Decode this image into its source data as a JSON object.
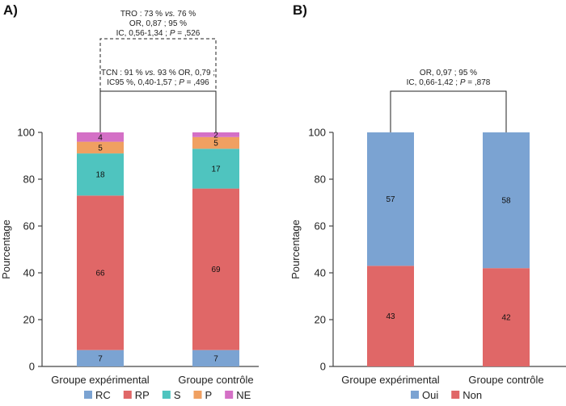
{
  "colors": {
    "RC": "#7BA3D2",
    "RP": "#E06767",
    "S": "#4FC4BF",
    "P": "#F0A061",
    "NE": "#D470C6",
    "Oui": "#7BA3D2",
    "Non": "#E06767"
  },
  "chart_data": [
    {
      "panel": "A)",
      "type": "bar",
      "stacked": true,
      "categories": [
        "Groupe expérimental",
        "Groupe contrôle"
      ],
      "ylabel": "Pourcentage",
      "ylim": [
        0,
        100
      ],
      "yticks": [
        0,
        20,
        40,
        60,
        80,
        100
      ],
      "series": [
        {
          "name": "RC",
          "values": [
            7,
            7
          ]
        },
        {
          "name": "RP",
          "values": [
            66,
            69
          ]
        },
        {
          "name": "S",
          "values": [
            18,
            17
          ]
        },
        {
          "name": "P",
          "values": [
            5,
            5
          ]
        },
        {
          "name": "NE",
          "values": [
            4,
            2
          ]
        }
      ],
      "legend": [
        "RC",
        "RP",
        "S",
        "P",
        "NE"
      ],
      "annotations": {
        "outer": [
          {
            "parts": [
              {
                "t": "TRO : 73 % "
              },
              {
                "t": "vs.",
                "i": true
              },
              {
                "t": " 76 %"
              }
            ]
          },
          {
            "parts": [
              {
                "t": "OR, 0,87 ; 95 %"
              }
            ]
          },
          {
            "parts": [
              {
                "t": "IC, 0,56-1,34 ; "
              },
              {
                "t": "P",
                "i": true
              },
              {
                "t": " = ,526"
              }
            ]
          }
        ],
        "inner": [
          {
            "parts": [
              {
                "t": "TCN : 91 % "
              },
              {
                "t": "vs.",
                "i": true
              },
              {
                "t": " 93 % OR, 0,79 ;"
              }
            ]
          },
          {
            "parts": [
              {
                "t": "IC95 %, 0,40-1,57 ; "
              },
              {
                "t": "P",
                "i": true
              },
              {
                "t": " = ,496"
              }
            ]
          }
        ]
      }
    },
    {
      "panel": "B)",
      "type": "bar",
      "stacked": true,
      "categories": [
        "Groupe expérimental",
        "Groupe contrôle"
      ],
      "ylabel": "Pourcentage",
      "ylim": [
        0,
        100
      ],
      "yticks": [
        0,
        20,
        40,
        60,
        80,
        100
      ],
      "series": [
        {
          "name": "Non",
          "values": [
            43,
            42
          ]
        },
        {
          "name": "Oui",
          "values": [
            57,
            58
          ]
        }
      ],
      "legend": [
        "Oui",
        "Non"
      ],
      "annotations": {
        "outer": [
          {
            "parts": [
              {
                "t": "OR, 0,97 ; 95 %"
              }
            ]
          },
          {
            "parts": [
              {
                "t": "IC, 0,66-1,42 ; "
              },
              {
                "t": "P",
                "i": true
              },
              {
                "t": " = ,878"
              }
            ]
          }
        ]
      }
    }
  ]
}
